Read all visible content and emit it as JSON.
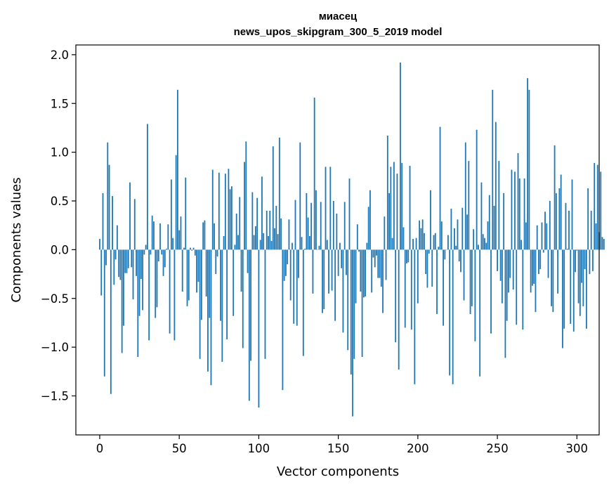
{
  "chart_data": {
    "type": "bar",
    "title": "миасец",
    "subtitle": "news_upos_skipgram_300_5_2019 model",
    "xlabel": "Vector components",
    "ylabel": "Components values",
    "xlim": [
      -15,
      314
    ],
    "ylim": [
      -1.9,
      2.1
    ],
    "xticks": [
      0,
      50,
      100,
      150,
      200,
      250,
      300
    ],
    "yticks": [
      -1.5,
      -1.0,
      -0.5,
      0.0,
      0.5,
      1.0,
      1.5,
      2.0
    ],
    "ytick_labels": [
      "−1.5",
      "−1.0",
      "−0.5",
      "0.0",
      "0.5",
      "1.0",
      "1.5",
      "2.0"
    ],
    "bar_color": "#1f77b4",
    "grid": false,
    "values": [
      0.11,
      -0.47,
      0.58,
      -1.3,
      -0.16,
      1.1,
      0.87,
      -1.48,
      0.55,
      -0.36,
      -0.1,
      0.25,
      -0.28,
      -0.31,
      -1.06,
      -0.78,
      -0.24,
      -0.24,
      -0.19,
      0.69,
      -0.18,
      -0.51,
      0.52,
      -0.27,
      -1.1,
      -0.68,
      -0.3,
      -0.62,
      -0.05,
      0.05,
      1.29,
      -0.93,
      -0.05,
      0.35,
      0.29,
      -0.7,
      -0.59,
      -0.12,
      0.27,
      -0.05,
      -0.27,
      -0.18,
      0.01,
      0.26,
      -0.86,
      0.72,
      0.12,
      -0.93,
      0.97,
      1.64,
      0.2,
      0.34,
      -0.43,
      0.02,
      0.74,
      -0.58,
      -0.52,
      0.02,
      -0.01,
      0.02,
      -0.06,
      -0.44,
      -0.33,
      -1.12,
      -0.72,
      0.28,
      0.3,
      -0.48,
      -1.25,
      -0.7,
      -1.39,
      0.82,
      0.27,
      -0.25,
      -0.07,
      0.79,
      -0.73,
      -1.15,
      0.14,
      0.78,
      -0.92,
      0.83,
      0.62,
      0.65,
      -0.68,
      0.05,
      0.37,
      0.15,
      0.54,
      -0.43,
      -1.01,
      0.9,
      1.11,
      -0.24,
      -1.55,
      -1.14,
      0.59,
      0.15,
      0.24,
      0.53,
      -1.62,
      0.1,
      0.75,
      0.17,
      -1.12,
      0.4,
      0.14,
      0.4,
      0.09,
      1.06,
      0.22,
      0.45,
      0.16,
      1.15,
      0.32,
      -1.44,
      -0.32,
      -0.27,
      -0.15,
      0.31,
      -0.52,
      0.07,
      -0.76,
      0.51,
      -0.78,
      -0.29,
      1.1,
      0.13,
      -1.09,
      0.01,
      0.58,
      0.33,
      0.14,
      0.48,
      -0.45,
      1.56,
      0.61,
      0.0,
      0.04,
      0.49,
      -0.65,
      -0.61,
      0.85,
      0.1,
      -0.45,
      0.85,
      -0.42,
      0.5,
      -0.73,
      0.37,
      -0.27,
      0.07,
      -0.19,
      -0.85,
      0.49,
      -0.26,
      -1.03,
      0.73,
      -1.28,
      -1.71,
      -1.12,
      -0.55,
      0.26,
      -0.02,
      -0.43,
      -1.1,
      -0.49,
      -0.48,
      0.07,
      0.44,
      0.61,
      -0.44,
      -0.08,
      -0.18,
      -0.06,
      -0.29,
      -0.29,
      -0.38,
      -0.65,
      0.34,
      -0.31,
      1.17,
      0.58,
      0.85,
      0.12,
      0.9,
      -0.95,
      0.78,
      -1.23,
      1.92,
      0.89,
      0.23,
      -0.8,
      -0.14,
      -0.13,
      0.86,
      -0.82,
      0.11,
      -1.38,
      0.12,
      -0.55,
      0.3,
      0.22,
      0.31,
      0.17,
      -0.25,
      -0.39,
      -0.04,
      0.61,
      -0.38,
      0.15,
      0.17,
      -0.66,
      0.03,
      1.26,
      0.29,
      -0.78,
      -0.1,
      0.0,
      0.15,
      -1.29,
      0.42,
      -1.38,
      0.22,
      0.04,
      0.31,
      -0.12,
      -0.23,
      0.43,
      -0.52,
      1.1,
      0.36,
      0.91,
      -0.66,
      -0.58,
      0.21,
      -0.94,
      1.23,
      0.05,
      -1.3,
      0.69,
      0.16,
      0.12,
      0.07,
      0.29,
      0.56,
      -0.86,
      1.64,
      0.45,
      1.31,
      -0.22,
      0.91,
      -0.32,
      -0.55,
      0.58,
      -1.11,
      -0.73,
      -0.44,
      -0.29,
      0.82,
      -0.41,
      0.8,
      -0.77,
      0.99,
      0.73,
      0.1,
      -0.82,
      0.73,
      0.28,
      1.76,
      1.64,
      -0.44,
      -0.37,
      -0.35,
      -0.64,
      0.25,
      -0.25,
      -0.2,
      0.28,
      -0.03,
      0.39,
      0.27,
      -0.29,
      0.5,
      -0.58,
      -0.64,
      1.07,
      0.58,
      -0.45,
      0.63,
      0.77,
      -1.01,
      -0.81,
      0.48,
      0.01,
      0.4,
      -0.76,
      0.72,
      -0.84,
      -0.23,
      -0.01,
      -0.55,
      -0.68,
      -0.34,
      -0.58,
      -0.2,
      -0.81,
      0.63,
      -0.25,
      0.4,
      -0.22,
      0.89,
      0.27,
      0.87,
      0.18,
      0.8,
      0.13,
      0.11
    ]
  }
}
